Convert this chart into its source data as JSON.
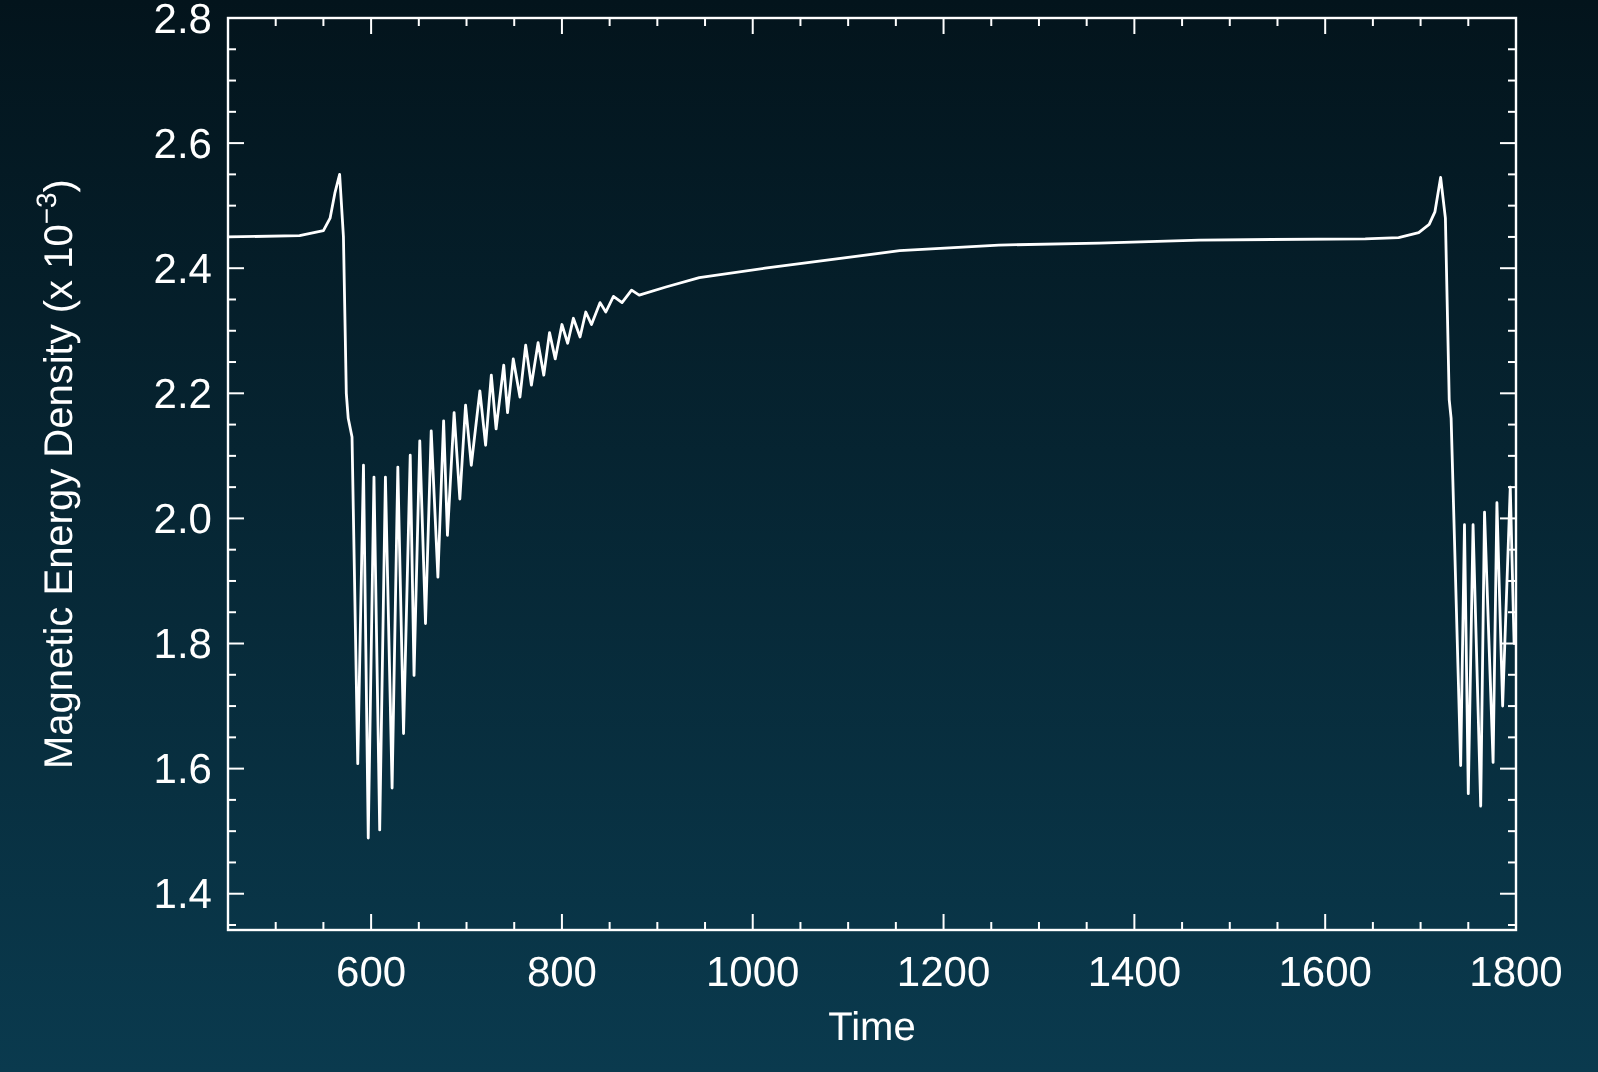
{
  "chart_data": {
    "type": "line",
    "xlabel": "Time",
    "ylabel": "Magnetic Energy Density (x 10$^{−3}$)",
    "xlim": [
      450,
      1800
    ],
    "ylim": [
      1.342,
      2.8
    ],
    "xticks": [
      {
        "value": 500,
        "label": null
      },
      {
        "value": 550,
        "label": null
      },
      600,
      {
        "value": 650,
        "label": null
      },
      {
        "value": 700,
        "label": null
      },
      {
        "value": 750,
        "label": null
      },
      800,
      {
        "value": 850,
        "label": null
      },
      {
        "value": 900,
        "label": null
      },
      {
        "value": 950,
        "label": null
      },
      1000,
      {
        "value": 1050,
        "label": null
      },
      {
        "value": 1100,
        "label": null
      },
      {
        "value": 1150,
        "label": null
      },
      1200,
      {
        "value": 1250,
        "label": null
      },
      {
        "value": 1300,
        "label": null
      },
      {
        "value": 1350,
        "label": null
      },
      1400,
      {
        "value": 1450,
        "label": null
      },
      {
        "value": 1500,
        "label": null
      },
      {
        "value": 1550,
        "label": null
      },
      1600,
      {
        "value": 1650,
        "label": null
      },
      {
        "value": 1700,
        "label": null
      },
      {
        "value": 1750,
        "label": null
      },
      1800
    ],
    "yticks": [
      {
        "value": 1.35,
        "label": null
      },
      {
        "value": 1.4,
        "label": "1.4"
      },
      {
        "value": 1.45,
        "label": null
      },
      {
        "value": 1.5,
        "label": null
      },
      {
        "value": 1.55,
        "label": null
      },
      {
        "value": 1.6,
        "label": "1.6"
      },
      {
        "value": 1.65,
        "label": null
      },
      {
        "value": 1.7,
        "label": null
      },
      {
        "value": 1.75,
        "label": null
      },
      {
        "value": 1.8,
        "label": "1.8"
      },
      {
        "value": 1.85,
        "label": null
      },
      {
        "value": 1.9,
        "label": null
      },
      {
        "value": 1.95,
        "label": null
      },
      {
        "value": 2.0,
        "label": "2.0"
      },
      {
        "value": 2.05,
        "label": null
      },
      {
        "value": 2.1,
        "label": null
      },
      {
        "value": 2.15,
        "label": null
      },
      {
        "value": 2.2,
        "label": "2.2"
      },
      {
        "value": 2.25,
        "label": null
      },
      {
        "value": 2.3,
        "label": null
      },
      {
        "value": 2.35,
        "label": null
      },
      {
        "value": 2.4,
        "label": "2.4"
      },
      {
        "value": 2.45,
        "label": null
      },
      {
        "value": 2.5,
        "label": null
      },
      {
        "value": 2.55,
        "label": null
      },
      {
        "value": 2.6,
        "label": "2.6"
      },
      {
        "value": 2.65,
        "label": null
      },
      {
        "value": 2.7,
        "label": null
      },
      {
        "value": 2.75,
        "label": null
      },
      {
        "value": 2.8,
        "label": "2.8"
      }
    ],
    "line_style": "solid",
    "series": [
      {
        "color": "#ffffff",
        "x": [
          450,
          525,
          550,
          557,
          562,
          567,
          571,
          574,
          576,
          580,
          586,
          592,
          597,
          603,
          609,
          615,
          622,
          628,
          634,
          641,
          645,
          651,
          657,
          663,
          670,
          676,
          680,
          687,
          693,
          699,
          705,
          714,
          720,
          726,
          731,
          739,
          743,
          749,
          756,
          762,
          768,
          775,
          781,
          787,
          793,
          800,
          806,
          812,
          819,
          825,
          831,
          840,
          846,
          854,
          863,
          873,
          881,
          909,
          944,
          1013,
          1154,
          1258,
          1363,
          1468,
          1642,
          1677,
          1698,
          1709,
          1715,
          1721,
          1726,
          1730,
          1732,
          1734,
          1742,
          1746,
          1750,
          1755,
          1763,
          1767,
          1776,
          1780,
          1786,
          1794,
          1798
        ],
        "values": [
          2.45,
          2.452,
          2.46,
          2.48,
          2.52,
          2.55,
          2.45,
          2.2,
          2.16,
          2.13,
          1.608,
          2.085,
          1.489,
          2.066,
          1.502,
          2.066,
          1.569,
          2.082,
          1.656,
          2.101,
          1.749,
          2.124,
          1.832,
          2.14,
          1.906,
          2.156,
          1.973,
          2.169,
          2.031,
          2.181,
          2.085,
          2.204,
          2.117,
          2.229,
          2.143,
          2.245,
          2.169,
          2.255,
          2.194,
          2.277,
          2.213,
          2.281,
          2.229,
          2.297,
          2.255,
          2.31,
          2.28,
          2.32,
          2.29,
          2.33,
          2.31,
          2.345,
          2.33,
          2.355,
          2.345,
          2.365,
          2.357,
          2.37,
          2.385,
          2.4,
          2.428,
          2.437,
          2.44,
          2.445,
          2.447,
          2.449,
          2.457,
          2.47,
          2.49,
          2.545,
          2.48,
          2.19,
          2.16,
          2.05,
          1.605,
          1.99,
          1.56,
          1.99,
          1.54,
          2.01,
          1.61,
          2.025,
          1.7,
          2.05,
          1.8
        ]
      }
    ]
  }
}
